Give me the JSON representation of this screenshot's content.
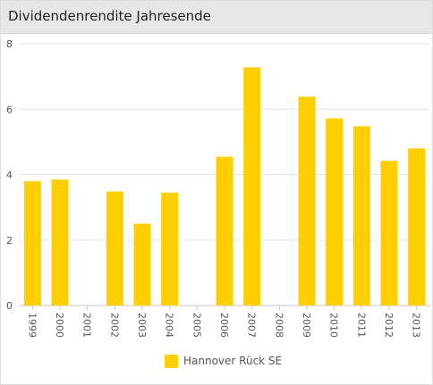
{
  "header": {
    "title": "Dividendenrendite Jahresende"
  },
  "chart_data": {
    "type": "bar",
    "categories": [
      "1999",
      "2000",
      "2001",
      "2002",
      "2003",
      "2004",
      "2005",
      "2006",
      "2007",
      "2008",
      "2009",
      "2010",
      "2011",
      "2012",
      "2013"
    ],
    "series": [
      {
        "name": "Hannover Rück SE",
        "color": "#fdcf00",
        "values": [
          3.8,
          3.85,
          null,
          3.48,
          2.5,
          3.45,
          null,
          4.55,
          7.28,
          null,
          6.38,
          5.72,
          5.48,
          4.42,
          4.8
        ]
      }
    ],
    "ylim": [
      0,
      8
    ],
    "yticks": [
      "0",
      "2",
      "4",
      "6",
      "8"
    ],
    "grid": true,
    "legend_position": "bottom-center",
    "xlabel": "",
    "ylabel": ""
  }
}
